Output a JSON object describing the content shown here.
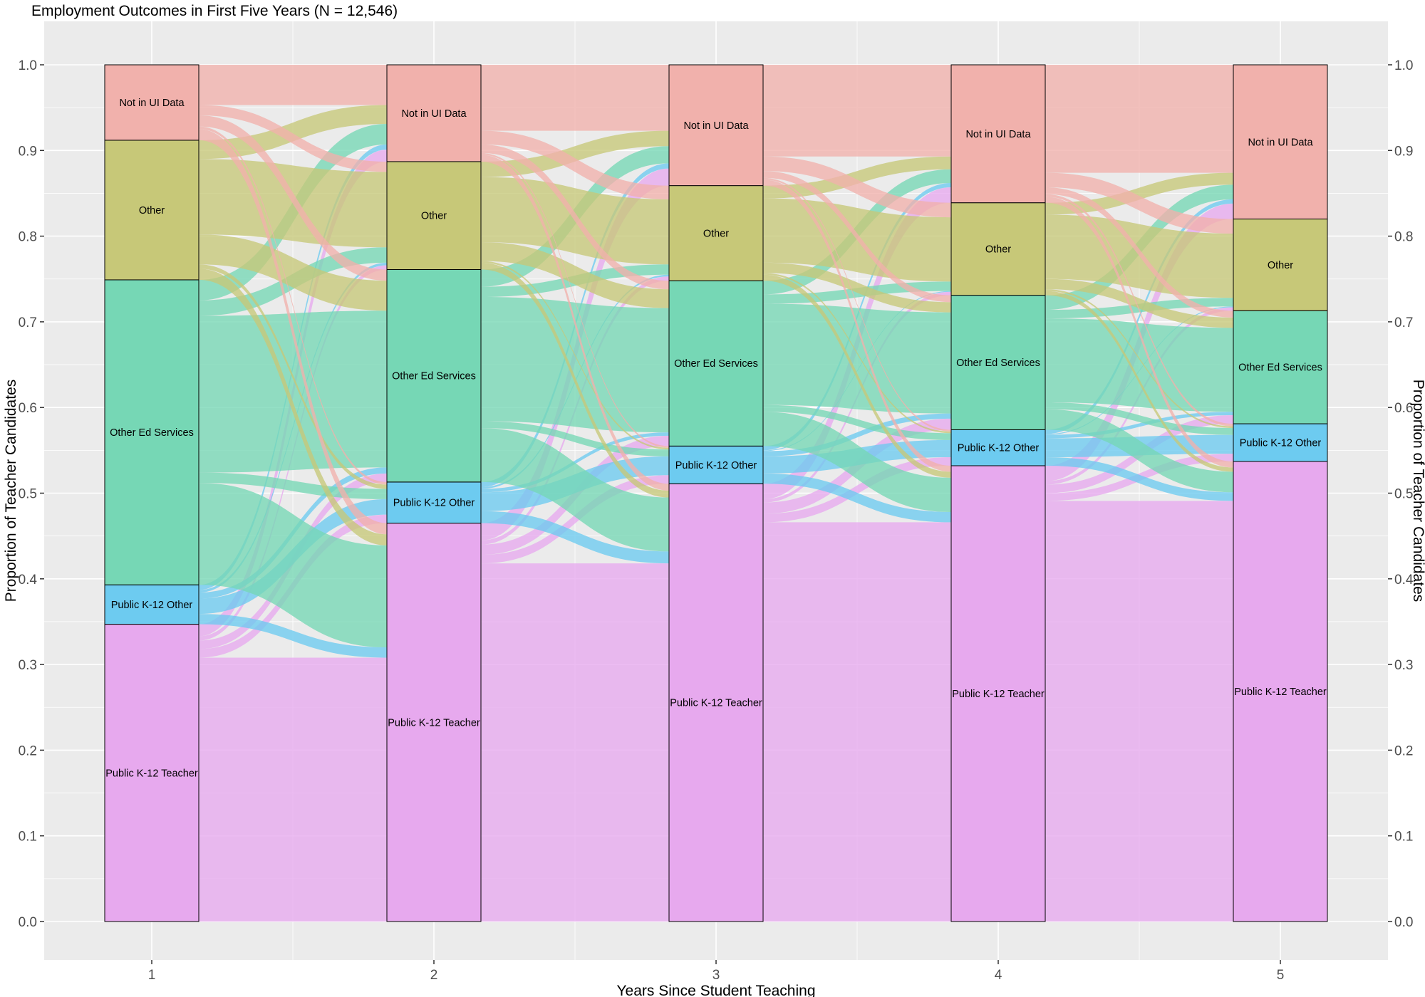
{
  "chart_data": {
    "type": "alluvial",
    "title": "Employment Outcomes in First Five Years (N = 12,546)",
    "xlabel": "Years Since Student Teaching",
    "ylabel": "Proportion of Teacher Candidates",
    "ylabel_right": "Proportion of Teacher Candidates",
    "x": [
      1,
      2,
      3,
      4,
      5
    ],
    "ylim": [
      0,
      1
    ],
    "yticks": [
      0.0,
      0.1,
      0.2,
      0.3,
      0.4,
      0.5,
      0.6,
      0.7,
      0.8,
      0.9,
      1.0
    ],
    "ytick_labels": [
      "0.0",
      "0.1",
      "0.2",
      "0.3",
      "0.4",
      "0.5",
      "0.6",
      "0.7",
      "0.8",
      "0.9",
      "1.0"
    ],
    "xtick_labels": [
      "1",
      "2",
      "3",
      "4",
      "5"
    ],
    "grid": true,
    "categories": [
      "Public K-12 Teacher",
      "Public K-12 Other",
      "Other Ed Services",
      "Other",
      "Not in UI Data"
    ],
    "colors": {
      "Public K-12 Teacher": "#E7A9EE",
      "Public K-12 Other": "#6DCBF0",
      "Other Ed Services": "#76D7B5",
      "Other": "#C7C878",
      "Not in UI Data": "#F1B1AC"
    },
    "background": "#EBEBEB",
    "series": [
      {
        "name": "Public K-12 Teacher",
        "values": [
          0.347,
          0.465,
          0.511,
          0.532,
          0.537
        ]
      },
      {
        "name": "Public K-12 Other",
        "values": [
          0.046,
          0.048,
          0.044,
          0.042,
          0.044
        ]
      },
      {
        "name": "Other Ed Services",
        "values": [
          0.356,
          0.248,
          0.193,
          0.157,
          0.132
        ]
      },
      {
        "name": "Other",
        "values": [
          0.163,
          0.126,
          0.111,
          0.108,
          0.107
        ]
      },
      {
        "name": "Not in UI Data",
        "values": [
          0.088,
          0.113,
          0.141,
          0.161,
          0.18
        ]
      }
    ],
    "flows": [
      {
        "from_year": 1,
        "to_year": 2,
        "transitions": [
          {
            "from": "Public K-12 Teacher",
            "to": "Public K-12 Teacher",
            "value": 0.308
          },
          {
            "from": "Public K-12 Teacher",
            "to": "Public K-12 Other",
            "value": 0.01
          },
          {
            "from": "Public K-12 Teacher",
            "to": "Other Ed Services",
            "value": 0.01
          },
          {
            "from": "Public K-12 Teacher",
            "to": "Other",
            "value": 0.005
          },
          {
            "from": "Public K-12 Teacher",
            "to": "Not in UI Data",
            "value": 0.014
          },
          {
            "from": "Public K-12 Other",
            "to": "Public K-12 Teacher",
            "value": 0.012
          },
          {
            "from": "Public K-12 Other",
            "to": "Public K-12 Other",
            "value": 0.018
          },
          {
            "from": "Public K-12 Other",
            "to": "Other Ed Services",
            "value": 0.007
          },
          {
            "from": "Public K-12 Other",
            "to": "Other",
            "value": 0.003
          },
          {
            "from": "Public K-12 Other",
            "to": "Not in UI Data",
            "value": 0.006
          },
          {
            "from": "Other Ed Services",
            "to": "Public K-12 Teacher",
            "value": 0.119
          },
          {
            "from": "Other Ed Services",
            "to": "Public K-12 Other",
            "value": 0.012
          },
          {
            "from": "Other Ed Services",
            "to": "Other Ed Services",
            "value": 0.183
          },
          {
            "from": "Other Ed Services",
            "to": "Other",
            "value": 0.018
          },
          {
            "from": "Other Ed Services",
            "to": "Not in UI Data",
            "value": 0.024
          },
          {
            "from": "Other",
            "to": "Public K-12 Teacher",
            "value": 0.013
          },
          {
            "from": "Other",
            "to": "Public K-12 Other",
            "value": 0.005
          },
          {
            "from": "Other",
            "to": "Other Ed Services",
            "value": 0.035
          },
          {
            "from": "Other",
            "to": "Other",
            "value": 0.088
          },
          {
            "from": "Other",
            "to": "Not in UI Data",
            "value": 0.022
          },
          {
            "from": "Not in UI Data",
            "to": "Public K-12 Teacher",
            "value": 0.013
          },
          {
            "from": "Not in UI Data",
            "to": "Public K-12 Other",
            "value": 0.003
          },
          {
            "from": "Not in UI Data",
            "to": "Other Ed Services",
            "value": 0.013
          },
          {
            "from": "Not in UI Data",
            "to": "Other",
            "value": 0.012
          },
          {
            "from": "Not in UI Data",
            "to": "Not in UI Data",
            "value": 0.047
          }
        ]
      },
      {
        "from_year": 2,
        "to_year": 3,
        "transitions": [
          {
            "from": "Public K-12 Teacher",
            "to": "Public K-12 Teacher",
            "value": 0.418
          },
          {
            "from": "Public K-12 Teacher",
            "to": "Public K-12 Other",
            "value": 0.01
          },
          {
            "from": "Public K-12 Teacher",
            "to": "Other Ed Services",
            "value": 0.012
          },
          {
            "from": "Public K-12 Teacher",
            "to": "Other",
            "value": 0.005
          },
          {
            "from": "Public K-12 Teacher",
            "to": "Not in UI Data",
            "value": 0.02
          },
          {
            "from": "Public K-12 Other",
            "to": "Public K-12 Teacher",
            "value": 0.014
          },
          {
            "from": "Public K-12 Other",
            "to": "Public K-12 Other",
            "value": 0.022
          },
          {
            "from": "Public K-12 Other",
            "to": "Other Ed Services",
            "value": 0.004
          },
          {
            "from": "Public K-12 Other",
            "to": "Other",
            "value": 0.002
          },
          {
            "from": "Public K-12 Other",
            "to": "Not in UI Data",
            "value": 0.006
          },
          {
            "from": "Other Ed Services",
            "to": "Public K-12 Teacher",
            "value": 0.063
          },
          {
            "from": "Other Ed Services",
            "to": "Public K-12 Other",
            "value": 0.008
          },
          {
            "from": "Other Ed Services",
            "to": "Other Ed Services",
            "value": 0.145
          },
          {
            "from": "Other Ed Services",
            "to": "Other",
            "value": 0.012
          },
          {
            "from": "Other Ed Services",
            "to": "Not in UI Data",
            "value": 0.02
          },
          {
            "from": "Other",
            "to": "Public K-12 Teacher",
            "value": 0.008
          },
          {
            "from": "Other",
            "to": "Public K-12 Other",
            "value": 0.002
          },
          {
            "from": "Other",
            "to": "Other Ed Services",
            "value": 0.022
          },
          {
            "from": "Other",
            "to": "Other",
            "value": 0.076
          },
          {
            "from": "Other",
            "to": "Not in UI Data",
            "value": 0.018
          },
          {
            "from": "Not in UI Data",
            "to": "Public K-12 Teacher",
            "value": 0.008
          },
          {
            "from": "Not in UI Data",
            "to": "Public K-12 Other",
            "value": 0.002
          },
          {
            "from": "Not in UI Data",
            "to": "Other Ed Services",
            "value": 0.01
          },
          {
            "from": "Not in UI Data",
            "to": "Other",
            "value": 0.016
          },
          {
            "from": "Not in UI Data",
            "to": "Not in UI Data",
            "value": 0.077
          }
        ]
      },
      {
        "from_year": 3,
        "to_year": 4,
        "transitions": [
          {
            "from": "Public K-12 Teacher",
            "to": "Public K-12 Teacher",
            "value": 0.466
          },
          {
            "from": "Public K-12 Teacher",
            "to": "Public K-12 Other",
            "value": 0.01
          },
          {
            "from": "Public K-12 Teacher",
            "to": "Other Ed Services",
            "value": 0.013
          },
          {
            "from": "Public K-12 Teacher",
            "to": "Other",
            "value": 0.004
          },
          {
            "from": "Public K-12 Teacher",
            "to": "Not in UI Data",
            "value": 0.018
          },
          {
            "from": "Public K-12 Other",
            "to": "Public K-12 Teacher",
            "value": 0.012
          },
          {
            "from": "Public K-12 Other",
            "to": "Public K-12 Other",
            "value": 0.02
          },
          {
            "from": "Public K-12 Other",
            "to": "Other Ed Services",
            "value": 0.006
          },
          {
            "from": "Public K-12 Other",
            "to": "Other",
            "value": 0.001
          },
          {
            "from": "Public K-12 Other",
            "to": "Not in UI Data",
            "value": 0.005
          },
          {
            "from": "Other Ed Services",
            "to": "Public K-12 Teacher",
            "value": 0.04
          },
          {
            "from": "Other Ed Services",
            "to": "Public K-12 Other",
            "value": 0.008
          },
          {
            "from": "Other Ed Services",
            "to": "Other Ed Services",
            "value": 0.118
          },
          {
            "from": "Other Ed Services",
            "to": "Other",
            "value": 0.011
          },
          {
            "from": "Other Ed Services",
            "to": "Not in UI Data",
            "value": 0.016
          },
          {
            "from": "Other",
            "to": "Public K-12 Teacher",
            "value": 0.007
          },
          {
            "from": "Other",
            "to": "Public K-12 Other",
            "value": 0.002
          },
          {
            "from": "Other",
            "to": "Other Ed Services",
            "value": 0.012
          },
          {
            "from": "Other",
            "to": "Other",
            "value": 0.075
          },
          {
            "from": "Other",
            "to": "Not in UI Data",
            "value": 0.015
          },
          {
            "from": "Not in UI Data",
            "to": "Public K-12 Teacher",
            "value": 0.007
          },
          {
            "from": "Not in UI Data",
            "to": "Public K-12 Other",
            "value": 0.002
          },
          {
            "from": "Not in UI Data",
            "to": "Other Ed Services",
            "value": 0.008
          },
          {
            "from": "Not in UI Data",
            "to": "Other",
            "value": 0.017
          },
          {
            "from": "Not in UI Data",
            "to": "Not in UI Data",
            "value": 0.107
          }
        ]
      },
      {
        "from_year": 4,
        "to_year": 5,
        "transitions": [
          {
            "from": "Public K-12 Teacher",
            "to": "Public K-12 Teacher",
            "value": 0.491
          },
          {
            "from": "Public K-12 Teacher",
            "to": "Public K-12 Other",
            "value": 0.009
          },
          {
            "from": "Public K-12 Teacher",
            "to": "Other Ed Services",
            "value": 0.01
          },
          {
            "from": "Public K-12 Teacher",
            "to": "Other",
            "value": 0.004
          },
          {
            "from": "Public K-12 Teacher",
            "to": "Not in UI Data",
            "value": 0.018
          },
          {
            "from": "Public K-12 Other",
            "to": "Public K-12 Teacher",
            "value": 0.01
          },
          {
            "from": "Public K-12 Other",
            "to": "Public K-12 Other",
            "value": 0.022
          },
          {
            "from": "Public K-12 Other",
            "to": "Other Ed Services",
            "value": 0.004
          },
          {
            "from": "Public K-12 Other",
            "to": "Other",
            "value": 0.001
          },
          {
            "from": "Public K-12 Other",
            "to": "Not in UI Data",
            "value": 0.005
          },
          {
            "from": "Other Ed Services",
            "to": "Public K-12 Teacher",
            "value": 0.024
          },
          {
            "from": "Other Ed Services",
            "to": "Public K-12 Other",
            "value": 0.008
          },
          {
            "from": "Other Ed Services",
            "to": "Other Ed Services",
            "value": 0.098
          },
          {
            "from": "Other Ed Services",
            "to": "Other",
            "value": 0.01
          },
          {
            "from": "Other Ed Services",
            "to": "Not in UI Data",
            "value": 0.017
          },
          {
            "from": "Other",
            "to": "Public K-12 Teacher",
            "value": 0.005
          },
          {
            "from": "Other",
            "to": "Public K-12 Other",
            "value": 0.002
          },
          {
            "from": "Other",
            "to": "Other Ed Services",
            "value": 0.012
          },
          {
            "from": "Other",
            "to": "Other",
            "value": 0.075
          },
          {
            "from": "Other",
            "to": "Not in UI Data",
            "value": 0.014
          },
          {
            "from": "Not in UI Data",
            "to": "Public K-12 Teacher",
            "value": 0.007
          },
          {
            "from": "Not in UI Data",
            "to": "Public K-12 Other",
            "value": 0.003
          },
          {
            "from": "Not in UI Data",
            "to": "Other Ed Services",
            "value": 0.008
          },
          {
            "from": "Not in UI Data",
            "to": "Other",
            "value": 0.017
          },
          {
            "from": "Not in UI Data",
            "to": "Not in UI Data",
            "value": 0.126
          }
        ]
      }
    ]
  }
}
